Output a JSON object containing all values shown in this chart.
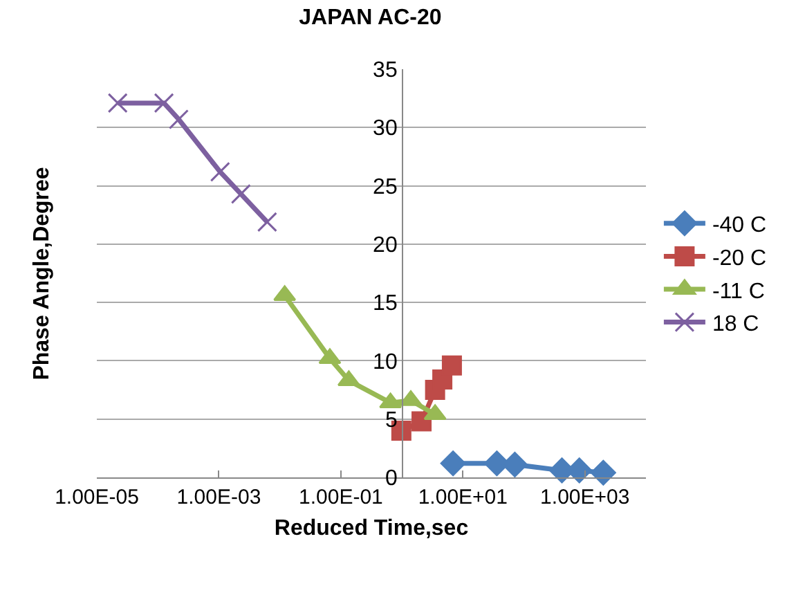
{
  "chart_data": {
    "type": "line",
    "title": "JAPAN AC-20",
    "xlabel": "Reduced Time,sec",
    "ylabel": "Phase Angle,Degree",
    "log": "x",
    "xlim": [
      1e-05,
      10000.0
    ],
    "xticks": [
      {
        "value": 1e-05,
        "label": "1.00E-05"
      },
      {
        "value": 0.001,
        "label": "1.00E-03"
      },
      {
        "value": 0.1,
        "label": "1.00E-01"
      },
      {
        "value": 10,
        "label": "1.00E+01"
      },
      {
        "value": 1000,
        "label": "1.00E+03"
      }
    ],
    "ylim": [
      0,
      35
    ],
    "yticks": [
      0,
      5,
      10,
      15,
      20,
      25,
      30,
      35
    ],
    "grid": "y",
    "legend": "right",
    "series": [
      {
        "name": "-40 C",
        "color": "#4a7ebb",
        "marker": "diamond",
        "x": [
          6.9,
          36,
          71,
          420,
          810,
          2000
        ],
        "values": [
          1.2,
          1.2,
          1.1,
          0.6,
          0.6,
          0.4
        ]
      },
      {
        "name": "-20 C",
        "color": "#be4b48",
        "marker": "square",
        "x": [
          0.98,
          2.1,
          3.5,
          4.6,
          6.6
        ],
        "values": [
          4.0,
          4.8,
          7.5,
          8.4,
          9.6
        ]
      },
      {
        "name": "-11 C",
        "color": "#98b954",
        "marker": "triangle",
        "x": [
          0.012,
          0.066,
          0.135,
          0.65,
          1.4,
          3.5
        ],
        "values": [
          15.6,
          10.2,
          8.3,
          6.4,
          6.6,
          5.4
        ]
      },
      {
        "name": "18 C",
        "color": "#7d60a0",
        "marker": "cross",
        "x": [
          2.2e-05,
          0.000126,
          0.00022,
          0.00105,
          0.0023,
          0.0062
        ],
        "values": [
          32.1,
          32.1,
          30.7,
          26.2,
          24.3,
          21.9
        ]
      }
    ]
  }
}
